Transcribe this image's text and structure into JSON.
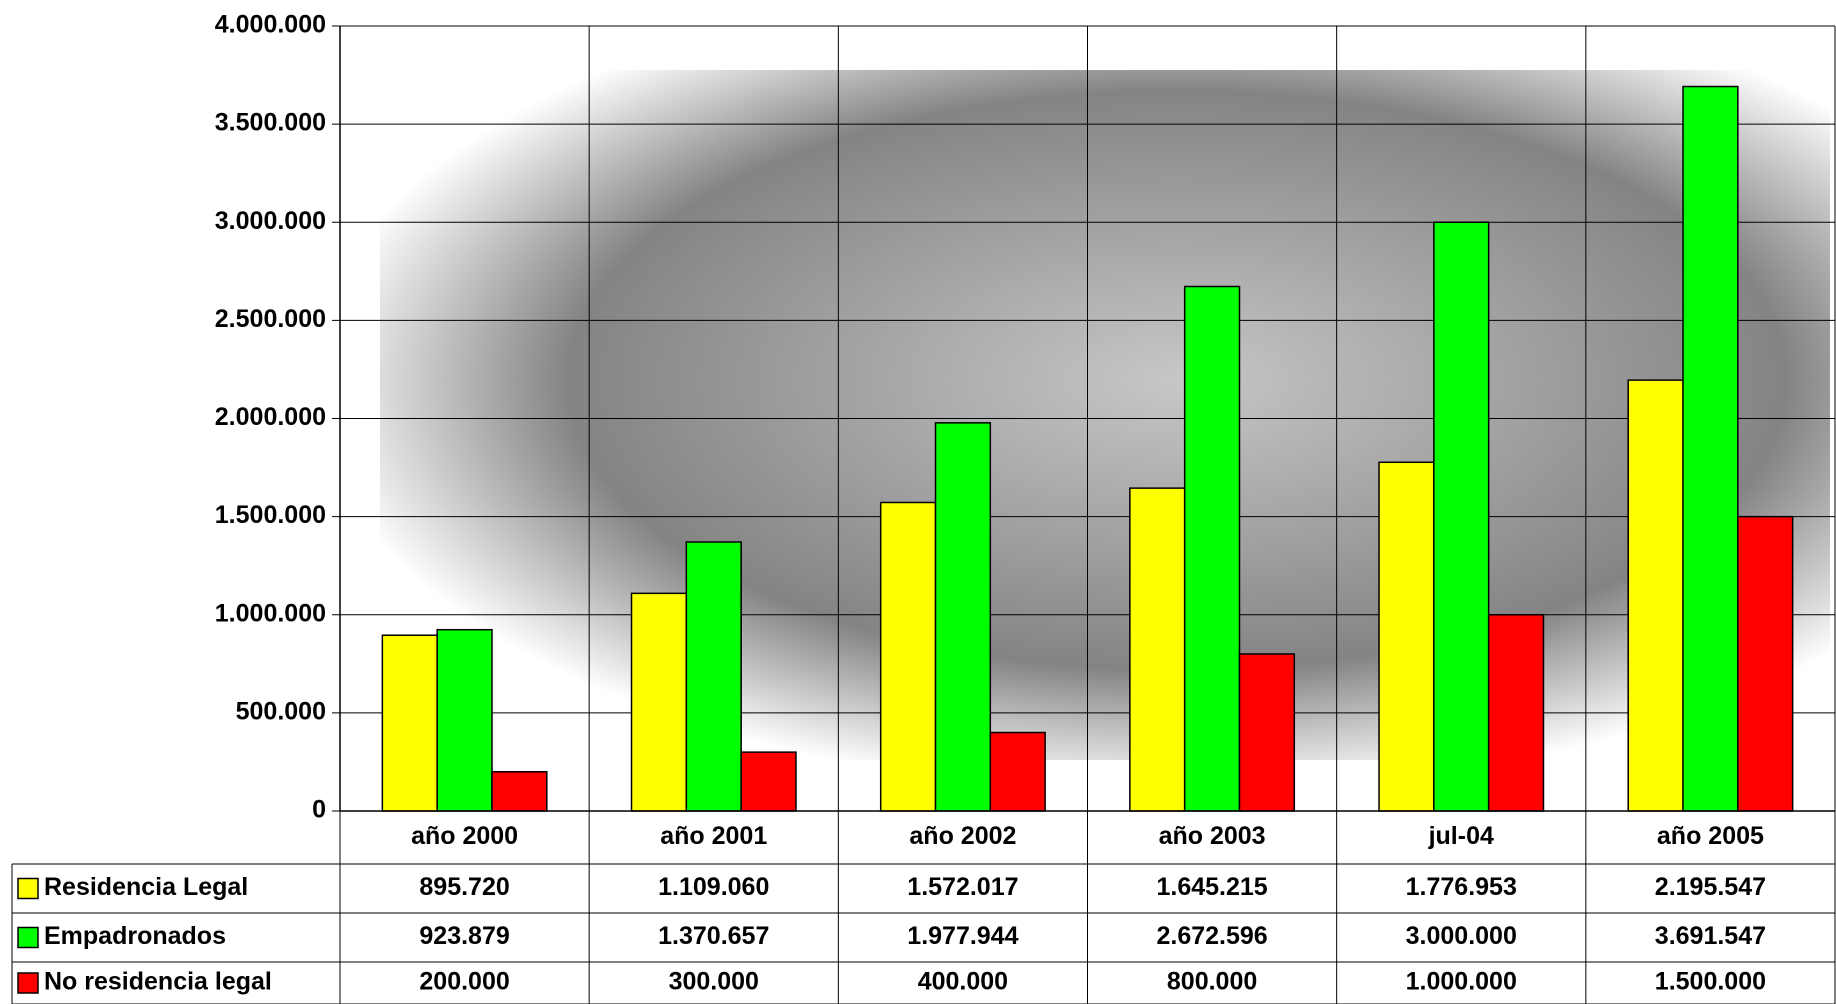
{
  "chart_data": {
    "type": "bar",
    "categories": [
      "año 2000",
      "año 2001",
      "año 2002",
      "año 2003",
      "jul-04",
      "año 2005"
    ],
    "series": [
      {
        "name": "Residencia Legal",
        "color": "#ffff00",
        "values": [
          895720,
          1109060,
          1572017,
          1645215,
          1776953,
          2195547
        ],
        "value_labels": [
          "895.720",
          "1.109.060",
          "1.572.017",
          "1.645.215",
          "1.776.953",
          "2.195.547"
        ]
      },
      {
        "name": "Empadronados",
        "color": "#00ff00",
        "values": [
          923879,
          1370657,
          1977944,
          2672596,
          3000000,
          3691547
        ],
        "value_labels": [
          "923.879",
          "1.370.657",
          "1.977.944",
          "2.672.596",
          "3.000.000",
          "3.691.547"
        ]
      },
      {
        "name": "No residencia legal",
        "color": "#ff0000",
        "values": [
          200000,
          300000,
          400000,
          800000,
          1000000,
          1500000
        ],
        "value_labels": [
          "200.000",
          "300.000",
          "400.000",
          "800.000",
          "1.000.000",
          "1.500.000"
        ]
      }
    ],
    "ylim": [
      0,
      4000000
    ],
    "yticks": [
      0,
      {
        "value": 500000,
        "label": "500.000"
      },
      {
        "value": 1000000,
        "label": "1.000.000"
      },
      {
        "value": 1500000,
        "label": "1.500.000"
      },
      {
        "value": 2000000,
        "label": "2.000.000"
      },
      {
        "value": 2500000,
        "label": "2.500.000"
      },
      {
        "value": 3000000,
        "label": "3.000.000"
      },
      {
        "value": 3500000,
        "label": "3.500.000"
      },
      {
        "value": 4000000,
        "label": "4.000.000"
      }
    ],
    "grid": true
  }
}
